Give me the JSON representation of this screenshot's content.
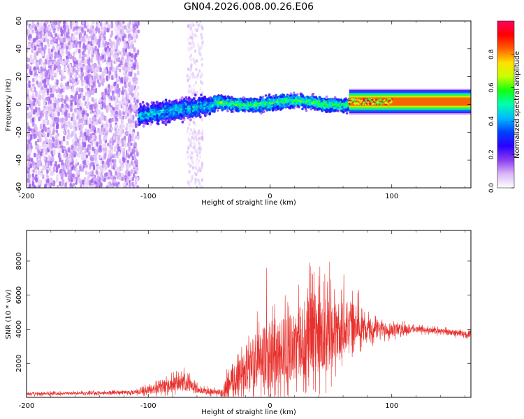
{
  "title": "GN04.2026.008.00.26.E06",
  "chart_data": [
    {
      "type": "heatmap",
      "xlabel": "Height of straight line (km)",
      "ylabel": "Frequency (Hz)",
      "xlim": [
        -200,
        165
      ],
      "ylim": [
        -60,
        60
      ],
      "xticks": [
        -200,
        -100,
        0,
        100
      ],
      "yticks": [
        60,
        40,
        20,
        0,
        -20,
        -40,
        -60
      ],
      "colorbar": {
        "label": "Normalized spectral amplitude",
        "range": [
          0,
          1
        ],
        "ticks": [
          0.0,
          0.2,
          0.4,
          0.6,
          0.8
        ],
        "colormap": [
          "#ffffff",
          "#d9b8f5",
          "#8b3cf0",
          "#2a00ff",
          "#0040ff",
          "#00b8ff",
          "#00ffb0",
          "#10ff10",
          "#c8ff00",
          "#ffe000",
          "#ff6000",
          "#ff0000",
          "#ff0060"
        ]
      },
      "regions": [
        {
          "name": "noise",
          "x": [
            -200,
            -108
          ],
          "f_spread": 60,
          "amplitude": 0.12
        },
        {
          "name": "noise-stripe",
          "x": [
            -68,
            -55
          ],
          "f_spread": 60,
          "amplitude": 0.08
        },
        {
          "name": "onset",
          "x": [
            -108,
            -45
          ],
          "f_center_start": -8,
          "f_center_end": 0,
          "f_spread": 10,
          "amplitude": 0.35
        },
        {
          "name": "signal",
          "x": [
            -45,
            65
          ],
          "f_center": 1,
          "f_spread": 7,
          "amplitude": 0.45
        },
        {
          "name": "tail",
          "x": [
            65,
            165
          ],
          "f_center": 2,
          "f_spread": 3,
          "amplitude": 0.85
        }
      ]
    },
    {
      "type": "line",
      "xlabel": "Height of straight line (km)",
      "ylabel": "SNR (10 * v/v)",
      "xlim": [
        -200,
        165
      ],
      "ylim": [
        0,
        9800
      ],
      "xticks": [
        -200,
        -100,
        0,
        100
      ],
      "yticks": [
        2000,
        4000,
        6000,
        8000
      ],
      "color": "#e8302c",
      "envelope": [
        {
          "x": -200,
          "base": 200,
          "spread": 150
        },
        {
          "x": -150,
          "base": 250,
          "spread": 150
        },
        {
          "x": -110,
          "base": 300,
          "spread": 200
        },
        {
          "x": -95,
          "base": 500,
          "spread": 500
        },
        {
          "x": -70,
          "base": 900,
          "spread": 900
        },
        {
          "x": -58,
          "base": 400,
          "spread": 300
        },
        {
          "x": -40,
          "base": 300,
          "spread": 300
        },
        {
          "x": -35,
          "base": 600,
          "spread": 1200
        },
        {
          "x": -20,
          "base": 1800,
          "spread": 2500
        },
        {
          "x": 0,
          "base": 2500,
          "spread": 3500
        },
        {
          "x": 20,
          "base": 3000,
          "spread": 3500
        },
        {
          "x": 35,
          "base": 3800,
          "spread": 4500
        },
        {
          "x": 55,
          "base": 3800,
          "spread": 3000
        },
        {
          "x": 70,
          "base": 4000,
          "spread": 1500
        },
        {
          "x": 90,
          "base": 4000,
          "spread": 800
        },
        {
          "x": 100,
          "base": 4000,
          "spread": 700
        },
        {
          "x": 120,
          "base": 4000,
          "spread": 300
        },
        {
          "x": 165,
          "base": 3700,
          "spread": 300
        }
      ]
    }
  ]
}
